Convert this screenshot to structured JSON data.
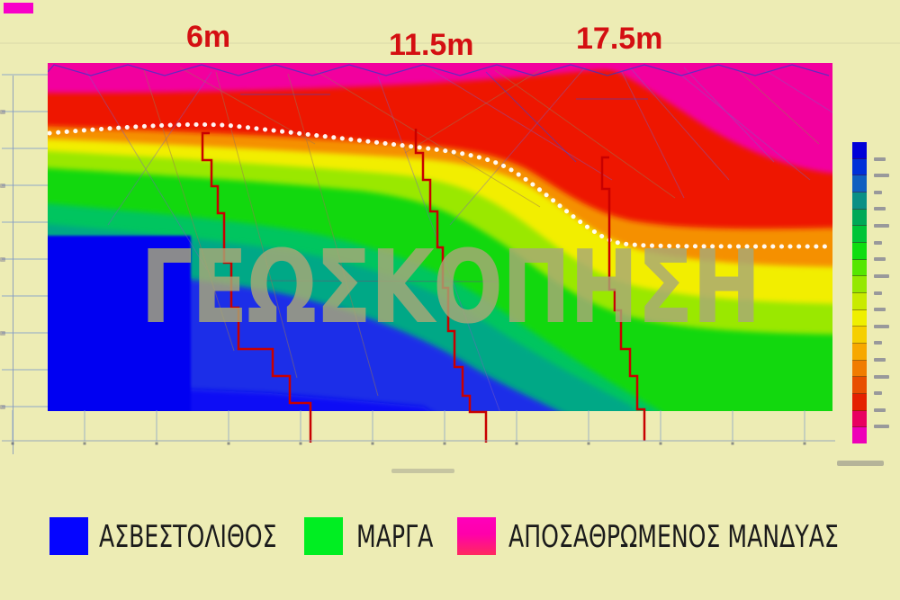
{
  "page": {
    "background_color": "#edecb4"
  },
  "stations": [
    {
      "label": "6m"
    },
    {
      "label": "11.5m"
    },
    {
      "label": "17.5m"
    }
  ],
  "watermark": {
    "text": "ΓΕΩΣΚΟΠΗΣΗ"
  },
  "legend": {
    "items": [
      {
        "label": "ΑΣΒΕΣΤΟΛΙΘΟΣ",
        "color": "#0505ff"
      },
      {
        "label": "ΜΑΡΓΑ",
        "color": "#00ee22"
      },
      {
        "label": "ΑΠΟΣΑΘΡΩΜΕΝΟΣ ΜΑΝΔΥΑΣ",
        "color": "#ff00bb",
        "color_bottom": "#ff2a5e"
      }
    ]
  },
  "colors": {
    "station_label": "#d40f12",
    "borehole_line": "#c80000",
    "boundary_dots": "#ffffff",
    "background": "#edecb4"
  },
  "chart_data": {
    "type": "heatmap",
    "subtype": "electrical-resistivity-tomography-cross-section",
    "title": "",
    "station_labels": [
      "6m",
      "11.5m",
      "17.5m"
    ],
    "colorbar": {
      "position": "right",
      "orientation": "vertical",
      "colors_top_to_bottom": [
        "#0000d8",
        "#0030d8",
        "#0f5fc0",
        "#0a8f85",
        "#00a857",
        "#00c437",
        "#10dd10",
        "#55e600",
        "#95e800",
        "#c8ea00",
        "#efef00",
        "#f5cf00",
        "#f7a800",
        "#f07c00",
        "#e84e00",
        "#e42000",
        "#e80060",
        "#ee00b8"
      ],
      "tick_labels": "tiny illegible numerals"
    },
    "legend_entries": [
      {
        "label": "ΑΣΒΕΣΤΟΛΙΘΟΣ",
        "color": "#0505ff"
      },
      {
        "label": "ΜΑΡΓΑ",
        "color": "#00ee22"
      },
      {
        "label": "ΑΠΟΣΑΘΡΩΜΕΝΟΣ ΜΑΝΔΥΑΣ",
        "color": "#ff00bb"
      }
    ],
    "zones_top_to_bottom": [
      "magenta (weathered mantle)",
      "red",
      "orange",
      "yellow",
      "yellow-green",
      "green (marl)",
      "teal",
      "blue (limestone)"
    ],
    "overlays": [
      "white dotted boundary line dipping from left (~shallow) to right (~deep)",
      "three red stepped borehole logs below the 6m, 11.5m and 17.5m labels",
      "thin diagonal survey ray lines in upper part",
      "ΓΕΩΣΚΟΠΗΣΗ watermark"
    ]
  }
}
